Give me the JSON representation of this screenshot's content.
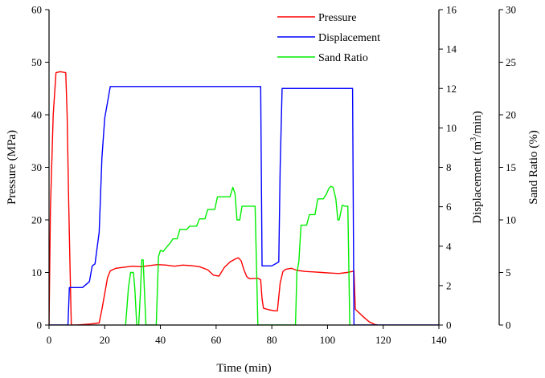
{
  "chart_data": {
    "type": "line",
    "title": "",
    "xlabel": "Time (min)",
    "xlim": [
      0,
      140
    ],
    "xticks": [
      0,
      20,
      40,
      60,
      80,
      100,
      120,
      140
    ],
    "grid": false,
    "legend_position": "top-center",
    "axes": [
      {
        "id": "pressure",
        "label": "Pressure (MPa)",
        "position": "left",
        "ylim": [
          0,
          60
        ],
        "ticks": [
          0,
          10,
          20,
          30,
          40,
          50,
          60
        ]
      },
      {
        "id": "displacement",
        "label": "Displacement (m³/min)",
        "label_main": "Displacement (m",
        "label_sup": "3",
        "label_tail": "/min)",
        "position": "right-inner",
        "ylim": [
          0,
          16
        ],
        "ticks": [
          0,
          2,
          4,
          6,
          8,
          10,
          12,
          14,
          16
        ]
      },
      {
        "id": "sand_ratio",
        "label": "Sand Ratio (%)",
        "position": "right-outer",
        "ylim": [
          0,
          30
        ],
        "ticks": [
          0,
          5,
          10,
          15,
          20,
          25,
          30
        ]
      }
    ],
    "series": [
      {
        "name": "Pressure",
        "axis": "pressure",
        "color": "#ff0000",
        "x": [
          0,
          0.5,
          1.5,
          2.5,
          4,
          6,
          6.5,
          7,
          7.5,
          8,
          10,
          15,
          18,
          19,
          20,
          21,
          22,
          24,
          27,
          30,
          33,
          36,
          39,
          42,
          45,
          48,
          51,
          54,
          57,
          59,
          61,
          63,
          65,
          67,
          68,
          69,
          70,
          71,
          72,
          75,
          76,
          76.5,
          77,
          79,
          81,
          82,
          83,
          84,
          85,
          87,
          89,
          92,
          95,
          98,
          101,
          104,
          107,
          109,
          109.5,
          110,
          111,
          113,
          115,
          117,
          118
        ],
        "values": [
          0,
          22,
          40,
          48,
          48.2,
          48,
          40,
          25,
          12,
          0,
          0,
          0.2,
          0.4,
          3,
          6,
          9,
          10.3,
          10.8,
          11,
          11.2,
          11.1,
          11.3,
          11.5,
          11.4,
          11.2,
          11.4,
          11.3,
          11.1,
          10.5,
          9.5,
          9.3,
          11,
          12,
          12.6,
          12.8,
          12.2,
          10.5,
          9.2,
          8.8,
          8.9,
          8.6,
          5,
          3.2,
          2.9,
          2.7,
          2.7,
          8,
          10.2,
          10.6,
          10.8,
          10.4,
          10.2,
          10.1,
          10,
          9.9,
          9.8,
          10,
          10.2,
          10.3,
          3,
          2.5,
          1.5,
          0.6,
          0.1,
          0
        ]
      },
      {
        "name": "Displacement",
        "axis": "displacement",
        "color": "#0000ff",
        "x": [
          0,
          6.8,
          7.3,
          9,
          12,
          14.5,
          15.5,
          16.5,
          18,
          19,
          20,
          21,
          22,
          30,
          40,
          50,
          60,
          70,
          75.5,
          76,
          76.5,
          77,
          80,
          82.5,
          83,
          83.7,
          84.3,
          90,
          100,
          108.5,
          109,
          109.5,
          110,
          140
        ],
        "values": [
          0,
          0,
          1.9,
          1.9,
          1.9,
          2.2,
          3,
          3.1,
          4.7,
          8.5,
          10.5,
          11.3,
          12.1,
          12.1,
          12.1,
          12.1,
          12.1,
          12.1,
          12.1,
          12.1,
          3,
          3,
          3,
          3.2,
          8,
          12,
          12,
          12,
          12,
          12,
          12,
          0,
          0,
          0
        ]
      },
      {
        "name": "Sand Ratio",
        "axis": "sand_ratio",
        "color": "#00ee00",
        "x": [
          27.5,
          28.5,
          29.3,
          30.3,
          30.8,
          31.5,
          32.2,
          32.8,
          33.3,
          33.8,
          34.3,
          34.8,
          35.5,
          36.5,
          38.5,
          39.3,
          40,
          41,
          42.5,
          43.5,
          44.5,
          46,
          47,
          49.5,
          50.5,
          53,
          54,
          56,
          57,
          59.5,
          60.5,
          65,
          66,
          66.8,
          67.5,
          68.5,
          69.3,
          70.2,
          71.5,
          73,
          74,
          75,
          88.5,
          89,
          89.7,
          90.5,
          92.5,
          93.5,
          95.5,
          96.5,
          98.5,
          99.5,
          100.5,
          101.2,
          102,
          103,
          103.7,
          104.2,
          105.3,
          106.3,
          107.3,
          108
        ],
        "values": [
          0,
          3.5,
          5,
          5,
          3.5,
          0,
          0,
          3,
          6.2,
          6.2,
          3,
          0,
          0,
          0,
          0,
          6.5,
          7.1,
          7,
          7.5,
          7.8,
          8.2,
          8.2,
          9.1,
          9.1,
          9.4,
          9.4,
          10.1,
          10.1,
          11,
          11,
          12.2,
          12.2,
          13.1,
          12.5,
          10,
          10,
          11.3,
          11.3,
          11.3,
          11.3,
          11.3,
          0,
          0,
          5,
          6,
          9.5,
          9.5,
          10.5,
          10.5,
          12,
          12,
          12.4,
          13,
          13.2,
          13.1,
          12,
          10,
          10,
          11.4,
          11.3,
          11.3,
          0
        ]
      }
    ]
  }
}
